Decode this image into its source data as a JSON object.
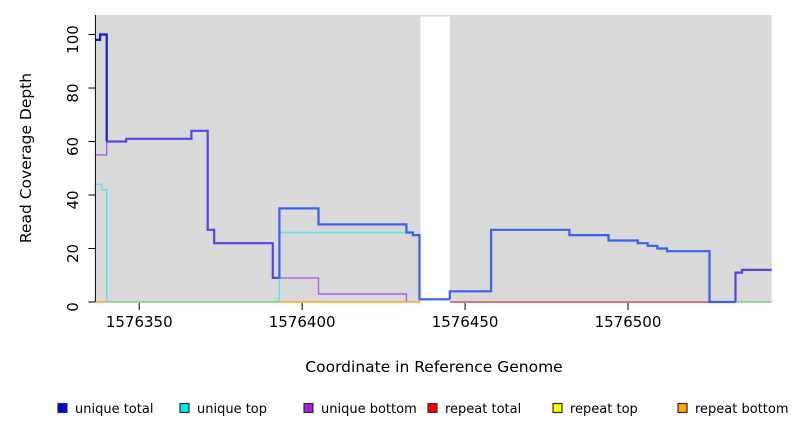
{
  "chart_data": {
    "type": "line",
    "subtype": "step-coverage",
    "title": "",
    "xlabel": "Coordinate in Reference Genome",
    "ylabel": "Read Coverage Depth",
    "x_ticks": [
      1576350,
      1576400,
      1576450,
      1576500
    ],
    "x_tick_labels": [
      "1576350",
      "1576400",
      "1576450",
      "1576500"
    ],
    "y_ticks": [
      0,
      20,
      40,
      60,
      80,
      100
    ],
    "y_tick_labels": [
      "0",
      "20",
      "40",
      "60",
      "80",
      "100"
    ],
    "x_domain": [
      1576336.7,
      1576544.1
    ],
    "y_domain": [
      0,
      107.3
    ],
    "plot_bg": "#d9d9d9",
    "masked_region": {
      "from": 1576436.3,
      "to": 1576445.3,
      "color": "#ffffff"
    },
    "colors": {
      "blue_dark": "#1a1ad4",
      "blue_slate": "#5246df",
      "blue_bright": "#3a5fe8",
      "cyan": "#55e6ee",
      "purple": "#ab5ce8",
      "green": "#7fce7f",
      "orange": "#ffa51e",
      "crimson": "#d4505e"
    },
    "series": [
      {
        "name": "unique-bottom-left",
        "color": "purple",
        "width": 1.4,
        "points": [
          [
            1576336.7,
            55
          ],
          [
            1576340,
            55
          ],
          [
            1576340,
            60
          ]
        ]
      },
      {
        "name": "unique-bottom-mid",
        "color": "purple",
        "width": 1.4,
        "points": [
          [
            1576393,
            9
          ],
          [
            1576405,
            9
          ],
          [
            1576405,
            3
          ],
          [
            1576432,
            3
          ],
          [
            1576432,
            0
          ]
        ]
      },
      {
        "name": "unique-top-left",
        "color": "cyan",
        "width": 1.4,
        "points": [
          [
            1576336.7,
            44
          ],
          [
            1576338.5,
            44
          ],
          [
            1576338.5,
            42
          ],
          [
            1576340,
            42
          ],
          [
            1576340,
            0
          ]
        ]
      },
      {
        "name": "unique-top-mid",
        "color": "cyan",
        "width": 1.4,
        "points": [
          [
            1576393,
            0
          ],
          [
            1576393,
            26
          ],
          [
            1576432,
            26
          ]
        ]
      },
      {
        "name": "baseline-orange-left",
        "color": "orange",
        "width": 1.6,
        "points": [
          [
            1576336.7,
            0
          ],
          [
            1576340,
            0
          ]
        ]
      },
      {
        "name": "baseline-green-left",
        "color": "green",
        "width": 1.6,
        "points": [
          [
            1576340,
            0
          ],
          [
            1576393,
            0
          ]
        ]
      },
      {
        "name": "baseline-orange-mid",
        "color": "orange",
        "width": 1.6,
        "points": [
          [
            1576393,
            0
          ],
          [
            1576436.3,
            0
          ]
        ]
      },
      {
        "name": "baseline-crimson-right",
        "color": "crimson",
        "width": 1.6,
        "points": [
          [
            1576445.3,
            0
          ],
          [
            1576533,
            0
          ]
        ]
      },
      {
        "name": "baseline-green-right",
        "color": "green",
        "width": 1.6,
        "points": [
          [
            1576533,
            0
          ],
          [
            1576544.1,
            0
          ]
        ]
      },
      {
        "name": "unique-total-start",
        "color": "blue_dark",
        "width": 2.2,
        "points": [
          [
            1576336.7,
            98
          ],
          [
            1576338,
            98
          ],
          [
            1576338,
            100
          ],
          [
            1576340,
            100
          ],
          [
            1576340,
            60
          ]
        ]
      },
      {
        "name": "unique-total-left-plateau",
        "color": "blue_slate",
        "width": 2.2,
        "points": [
          [
            1576340,
            60
          ],
          [
            1576346,
            60
          ],
          [
            1576346,
            61
          ],
          [
            1576366,
            61
          ],
          [
            1576366,
            64
          ],
          [
            1576371,
            64
          ],
          [
            1576371,
            27
          ],
          [
            1576373,
            27
          ],
          [
            1576373,
            22
          ],
          [
            1576391,
            22
          ],
          [
            1576391,
            9
          ],
          [
            1576393,
            9
          ]
        ]
      },
      {
        "name": "unique-total-mid",
        "color": "blue_bright",
        "width": 2.2,
        "points": [
          [
            1576393,
            9
          ],
          [
            1576393,
            35
          ],
          [
            1576405,
            35
          ],
          [
            1576405,
            29
          ],
          [
            1576432,
            29
          ],
          [
            1576432,
            26
          ],
          [
            1576434,
            26
          ],
          [
            1576434,
            25
          ],
          [
            1576436,
            25
          ],
          [
            1576436,
            1
          ],
          [
            1576445.3,
            1
          ]
        ]
      },
      {
        "name": "unique-total-right",
        "color": "blue_bright",
        "width": 2.2,
        "points": [
          [
            1576445.3,
            1
          ],
          [
            1576445.3,
            4
          ],
          [
            1576458,
            4
          ],
          [
            1576458,
            27
          ],
          [
            1576482,
            27
          ],
          [
            1576482,
            25
          ],
          [
            1576494,
            25
          ],
          [
            1576494,
            23
          ],
          [
            1576503,
            23
          ],
          [
            1576503,
            22
          ],
          [
            1576506,
            22
          ],
          [
            1576506,
            21
          ],
          [
            1576509,
            21
          ],
          [
            1576509,
            20
          ],
          [
            1576512,
            20
          ],
          [
            1576512,
            19
          ],
          [
            1576525,
            19
          ],
          [
            1576525,
            0
          ],
          [
            1576533,
            0
          ]
        ]
      },
      {
        "name": "unique-total-tail",
        "color": "blue_slate",
        "width": 2.2,
        "points": [
          [
            1576533,
            0
          ],
          [
            1576533,
            11
          ],
          [
            1576535,
            11
          ],
          [
            1576535,
            12
          ],
          [
            1576544.1,
            12
          ]
        ]
      }
    ],
    "legend": [
      {
        "label": "unique total",
        "fill": "#0000e6"
      },
      {
        "label": "unique top",
        "fill": "#00e5ee"
      },
      {
        "label": "unique bottom",
        "fill": "#a020f0"
      },
      {
        "label": "repeat total",
        "fill": "#ff0000"
      },
      {
        "label": "repeat top",
        "fill": "#ffff00"
      },
      {
        "label": "repeat bottom",
        "fill": "#ffa500"
      }
    ],
    "legend_position": "bottom",
    "grid": false
  }
}
